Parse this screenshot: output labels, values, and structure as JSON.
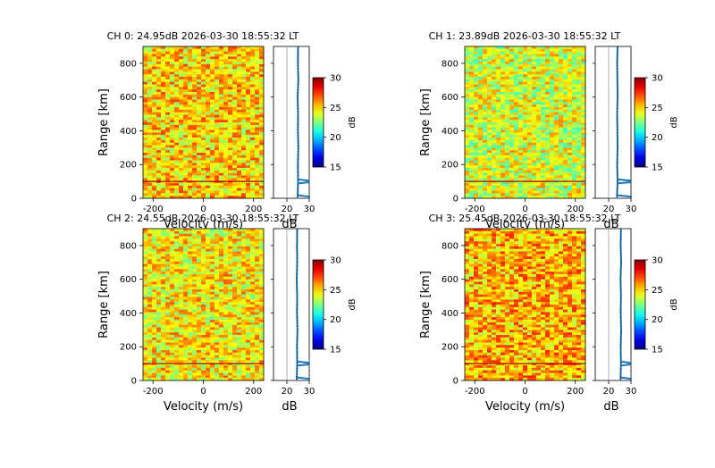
{
  "chart_data": [
    {
      "type": "heatmap",
      "title": "CH 0: 24.95dB 2026-03-30 18:55:32 LT",
      "xlabel": "Velocity (m/s)",
      "ylabel": "Range [km]",
      "xlim": [
        -240,
        240
      ],
      "ylim": [
        0,
        900
      ],
      "xticks": [
        "-200",
        "0",
        "200"
      ],
      "yticks": [
        "0",
        "200",
        "400",
        "600",
        "800"
      ],
      "profile_xlabel": "dB",
      "profile_xticks": [
        "20",
        "30"
      ],
      "profile_xlim": [
        14,
        30
      ],
      "colorbar_label": "dB",
      "colorbar_ticks": [
        "15",
        "20",
        "25",
        "30"
      ],
      "clim": [
        15,
        30
      ],
      "noise_level_db": 24.95,
      "profile_db": [
        24.8,
        25.0,
        24.9,
        25.1,
        24.9,
        25.0,
        24.8,
        25.1,
        24.9,
        25.0
      ],
      "profile_ranges": [
        5,
        100,
        200,
        300,
        400,
        500,
        600,
        700,
        800,
        900
      ],
      "color_scale": [
        "#00007f",
        "#0000ff",
        "#007fff",
        "#00ffff",
        "#7fff7f",
        "#ffff00",
        "#ff7f00",
        "#ff0000",
        "#7f0000"
      ]
    },
    {
      "type": "heatmap",
      "title": "CH 1: 23.89dB 2026-03-30 18:55:32 LT",
      "xlabel": "Velocity (m/s)",
      "ylabel": "Range [km]",
      "xlim": [
        -240,
        240
      ],
      "ylim": [
        0,
        900
      ],
      "xticks": [
        "-200",
        "0",
        "200"
      ],
      "yticks": [
        "0",
        "200",
        "400",
        "600",
        "800"
      ],
      "profile_xlabel": "dB",
      "profile_xticks": [
        "20",
        "30"
      ],
      "profile_xlim": [
        14,
        30
      ],
      "colorbar_label": "dB",
      "colorbar_ticks": [
        "15",
        "20",
        "25",
        "30"
      ],
      "clim": [
        15,
        30
      ],
      "noise_level_db": 23.89,
      "profile_db": [
        23.7,
        24.0,
        23.8,
        24.0,
        23.9,
        23.8,
        24.0,
        23.9,
        23.8,
        24.0
      ],
      "profile_ranges": [
        5,
        100,
        200,
        300,
        400,
        500,
        600,
        700,
        800,
        900
      ],
      "color_scale": [
        "#00007f",
        "#0000ff",
        "#007fff",
        "#00ffff",
        "#7fff7f",
        "#ffff00",
        "#ff7f00",
        "#ff0000",
        "#7f0000"
      ]
    },
    {
      "type": "heatmap",
      "title": "CH 2: 24.55dB 2026-03-30 18:55:32 LT",
      "xlabel": "Velocity (m/s)",
      "ylabel": "Range [km]",
      "xlim": [
        -240,
        240
      ],
      "ylim": [
        0,
        900
      ],
      "xticks": [
        "-200",
        "0",
        "200"
      ],
      "yticks": [
        "0",
        "200",
        "400",
        "600",
        "800"
      ],
      "profile_xlabel": "dB",
      "profile_xticks": [
        "20",
        "30"
      ],
      "profile_xlim": [
        14,
        30
      ],
      "colorbar_label": "dB",
      "colorbar_ticks": [
        "15",
        "20",
        "25",
        "30"
      ],
      "clim": [
        15,
        30
      ],
      "noise_level_db": 24.55,
      "profile_db": [
        24.4,
        24.6,
        24.5,
        24.7,
        24.5,
        24.6,
        24.4,
        24.6,
        24.5,
        24.6
      ],
      "profile_ranges": [
        5,
        100,
        200,
        300,
        400,
        500,
        600,
        700,
        800,
        900
      ],
      "color_scale": [
        "#00007f",
        "#0000ff",
        "#007fff",
        "#00ffff",
        "#7fff7f",
        "#ffff00",
        "#ff7f00",
        "#ff0000",
        "#7f0000"
      ]
    },
    {
      "type": "heatmap",
      "title": "CH 3: 25.45dB 2026-03-30 18:55:32 LT",
      "xlabel": "Velocity (m/s)",
      "ylabel": "Range [km]",
      "xlim": [
        -240,
        240
      ],
      "ylim": [
        0,
        900
      ],
      "xticks": [
        "-200",
        "0",
        "200"
      ],
      "yticks": [
        "0",
        "200",
        "400",
        "600",
        "800"
      ],
      "profile_xlabel": "dB",
      "profile_xticks": [
        "20",
        "30"
      ],
      "profile_xlim": [
        14,
        30
      ],
      "colorbar_label": "dB",
      "colorbar_ticks": [
        "15",
        "20",
        "25",
        "30"
      ],
      "clim": [
        15,
        30
      ],
      "noise_level_db": 25.45,
      "profile_db": [
        25.3,
        25.5,
        25.4,
        25.6,
        25.4,
        25.5,
        25.3,
        25.6,
        25.4,
        25.5
      ],
      "profile_ranges": [
        5,
        100,
        200,
        300,
        400,
        500,
        600,
        700,
        800,
        900
      ],
      "color_scale": [
        "#00007f",
        "#0000ff",
        "#007fff",
        "#00ffff",
        "#7fff7f",
        "#ffff00",
        "#ff7f00",
        "#ff0000",
        "#7f0000"
      ]
    }
  ]
}
